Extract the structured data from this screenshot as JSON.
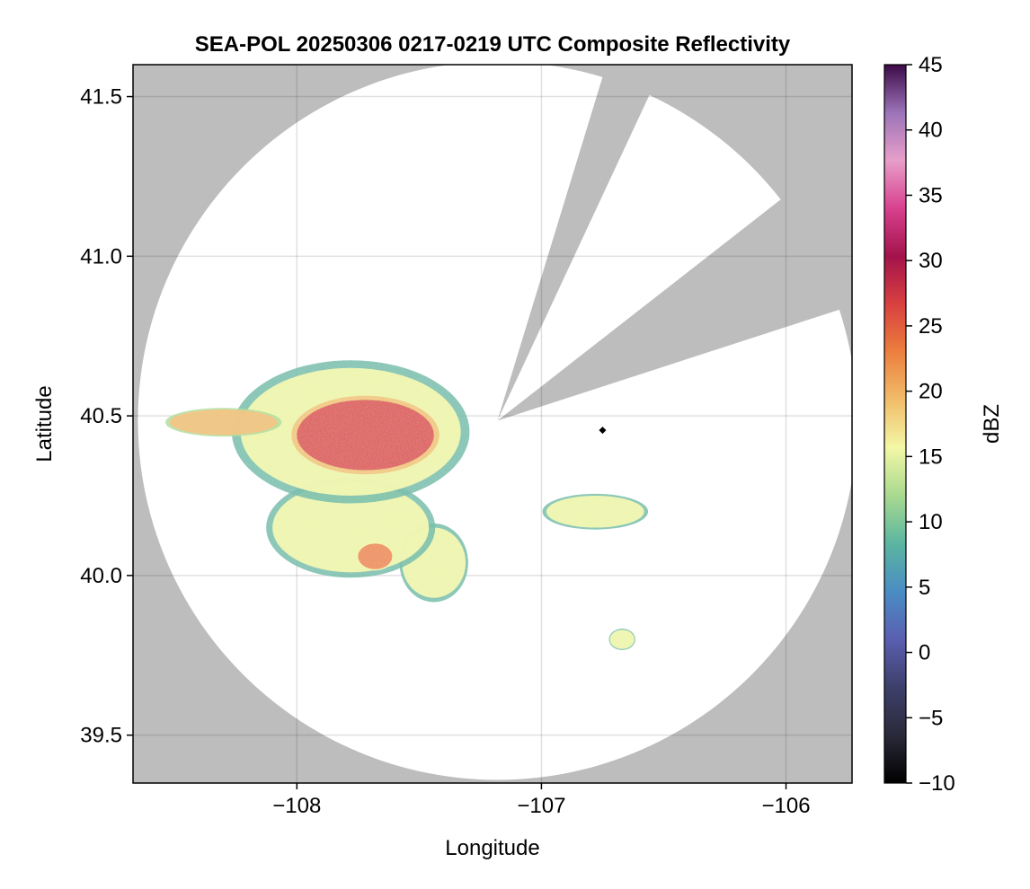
{
  "chart_data": {
    "type": "heatmap",
    "title": "SEA-POL 20250306 0217-0219 UTC Composite Reflectivity",
    "xlabel": "Longitude",
    "ylabel": "Latitude",
    "xlim": [
      -108.67,
      -105.73
    ],
    "ylim": [
      39.35,
      41.6
    ],
    "xticks": [
      -108,
      -107,
      -106
    ],
    "xtick_labels": [
      "−108",
      "−107",
      "−106"
    ],
    "yticks": [
      39.5,
      40.0,
      40.5,
      41.0,
      41.5
    ],
    "ytick_labels": [
      "39.5",
      "40.0",
      "40.5",
      "41.0",
      "41.5"
    ],
    "grid": true,
    "background_color": "#bdbdbd",
    "radar": {
      "center_lon": -107.18,
      "center_lat": 40.485,
      "range_deg_lat": 1.125,
      "blocked_sectors_deg_from_north": [
        [
          17,
          25
        ],
        [
          52,
          72
        ]
      ]
    },
    "marker": {
      "lon": -106.75,
      "lat": 40.455,
      "shape": "diamond",
      "color": "#000000"
    },
    "echoes": [
      {
        "name": "main-cell-core",
        "lon": -107.72,
        "lat": 40.44,
        "rx_lon": 0.28,
        "ry_lat": 0.11,
        "dbz": 25
      },
      {
        "name": "main-cell-west-tail",
        "lon": -108.3,
        "lat": 40.48,
        "rx_lon": 0.22,
        "ry_lat": 0.04,
        "dbz": 18
      },
      {
        "name": "main-cell-envelope",
        "lon": -107.78,
        "lat": 40.45,
        "rx_lon": 0.45,
        "ry_lat": 0.2,
        "dbz": 16
      },
      {
        "name": "southern-lobe",
        "lon": -107.78,
        "lat": 40.15,
        "rx_lon": 0.32,
        "ry_lat": 0.14,
        "dbz": 15
      },
      {
        "name": "southern-lobe-core",
        "lon": -107.68,
        "lat": 40.06,
        "rx_lon": 0.07,
        "ry_lat": 0.04,
        "dbz": 22
      },
      {
        "name": "south-central-cell",
        "lon": -107.44,
        "lat": 40.04,
        "rx_lon": 0.13,
        "ry_lat": 0.11,
        "dbz": 14
      },
      {
        "name": "east-band",
        "lon": -106.78,
        "lat": 40.2,
        "rx_lon": 0.2,
        "ry_lat": 0.05,
        "dbz": 14
      },
      {
        "name": "small-south-cell",
        "lon": -106.67,
        "lat": 39.8,
        "rx_lon": 0.05,
        "ry_lat": 0.03,
        "dbz": 16
      }
    ],
    "colorbar": {
      "label": "dBZ",
      "min": -10,
      "max": 45,
      "ticks": [
        -10,
        -5,
        0,
        5,
        10,
        15,
        20,
        25,
        30,
        35,
        40,
        45
      ],
      "tick_labels": [
        "−10",
        "−5",
        "0",
        "5",
        "10",
        "15",
        "20",
        "25",
        "30",
        "35",
        "40",
        "45"
      ],
      "colors": [
        "#000000",
        "#2a2a3a",
        "#3d3f6a",
        "#5a5fb0",
        "#4a8dc4",
        "#5bb5a0",
        "#a8d98f",
        "#f3f7a6",
        "#f1bd6a",
        "#ec7f3e",
        "#d8403f",
        "#a3134b",
        "#d8418f",
        "#e79ec9",
        "#9c74b8",
        "#3d0a48"
      ]
    }
  }
}
